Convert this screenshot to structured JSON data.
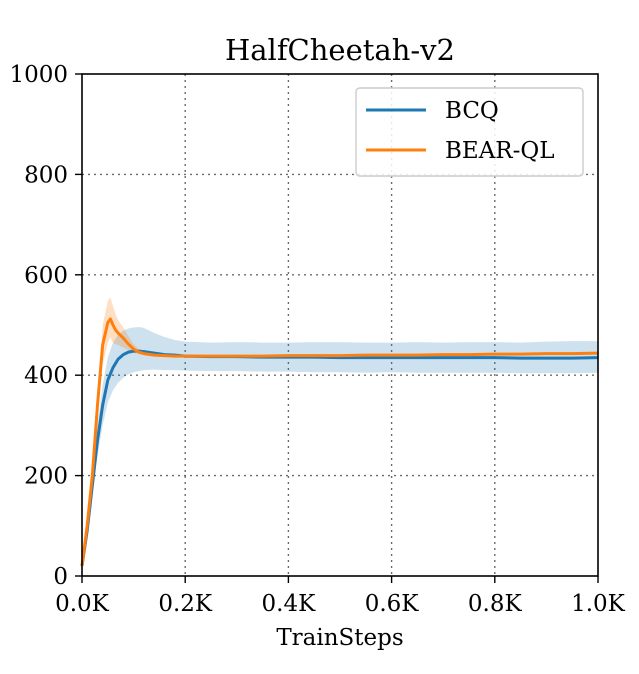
{
  "chart_data": {
    "type": "line",
    "title": "HalfCheetah-v2",
    "xlabel": "TrainSteps",
    "ylabel": "",
    "xlim": [
      0,
      1000
    ],
    "ylim": [
      0,
      1000
    ],
    "xticks": [
      0,
      200,
      400,
      600,
      800,
      1000
    ],
    "xtick_labels": [
      "0.0K",
      "0.2K",
      "0.4K",
      "0.6K",
      "0.8K",
      "1.0K"
    ],
    "yticks": [
      0,
      200,
      400,
      600,
      800,
      1000
    ],
    "ytick_labels": [
      "0",
      "200",
      "400",
      "600",
      "800",
      "1000"
    ],
    "grid": true,
    "legend_position": "top-right",
    "series": [
      {
        "name": "BCQ",
        "color": "#1f77b4",
        "x": [
          0,
          10,
          20,
          30,
          40,
          50,
          60,
          70,
          80,
          90,
          100,
          110,
          120,
          140,
          160,
          180,
          200,
          250,
          300,
          350,
          400,
          450,
          500,
          550,
          600,
          650,
          700,
          750,
          800,
          850,
          900,
          950,
          1000
        ],
        "y": [
          20,
          90,
          180,
          270,
          340,
          390,
          415,
          432,
          441,
          446,
          448,
          448,
          447,
          444,
          441,
          440,
          438,
          437,
          437,
          436,
          436,
          436,
          435,
          435,
          435,
          435,
          435,
          435,
          435,
          434,
          434,
          434,
          435
        ],
        "lower": [
          20,
          80,
          160,
          240,
          300,
          345,
          370,
          385,
          395,
          402,
          406,
          408,
          410,
          411,
          410,
          410,
          409,
          408,
          408,
          407,
          407,
          406,
          406,
          405,
          406,
          405,
          405,
          405,
          405,
          404,
          404,
          404,
          405
        ],
        "upper": [
          20,
          100,
          200,
          300,
          380,
          435,
          465,
          480,
          489,
          493,
          495,
          496,
          494,
          484,
          476,
          470,
          467,
          465,
          466,
          465,
          465,
          466,
          466,
          465,
          465,
          466,
          465,
          466,
          466,
          465,
          467,
          468,
          468
        ]
      },
      {
        "name": "BEAR-QL",
        "color": "#ff7f0e",
        "x": [
          0,
          10,
          20,
          30,
          40,
          50,
          55,
          60,
          65,
          70,
          80,
          90,
          100,
          110,
          120,
          140,
          160,
          180,
          200,
          250,
          300,
          350,
          400,
          450,
          500,
          550,
          600,
          650,
          700,
          750,
          800,
          850,
          900,
          950,
          1000
        ],
        "y": [
          20,
          100,
          200,
          340,
          460,
          505,
          512,
          500,
          490,
          484,
          474,
          462,
          452,
          446,
          443,
          440,
          439,
          438,
          438,
          438,
          438,
          438,
          439,
          439,
          439,
          440,
          440,
          440,
          441,
          441,
          442,
          442,
          443,
          443,
          444
        ],
        "lower": [
          20,
          95,
          190,
          320,
          420,
          465,
          475,
          465,
          462,
          460,
          455,
          450,
          445,
          442,
          440,
          438,
          437,
          436,
          436,
          436,
          436,
          436,
          437,
          437,
          437,
          438,
          438,
          438,
          439,
          439,
          440,
          440,
          441,
          441,
          442
        ],
        "upper": [
          20,
          105,
          215,
          365,
          500,
          548,
          555,
          538,
          522,
          510,
          495,
          478,
          462,
          452,
          447,
          443,
          441,
          440,
          440,
          440,
          440,
          440,
          441,
          441,
          441,
          442,
          442,
          442,
          443,
          443,
          444,
          444,
          445,
          445,
          446
        ]
      }
    ]
  }
}
